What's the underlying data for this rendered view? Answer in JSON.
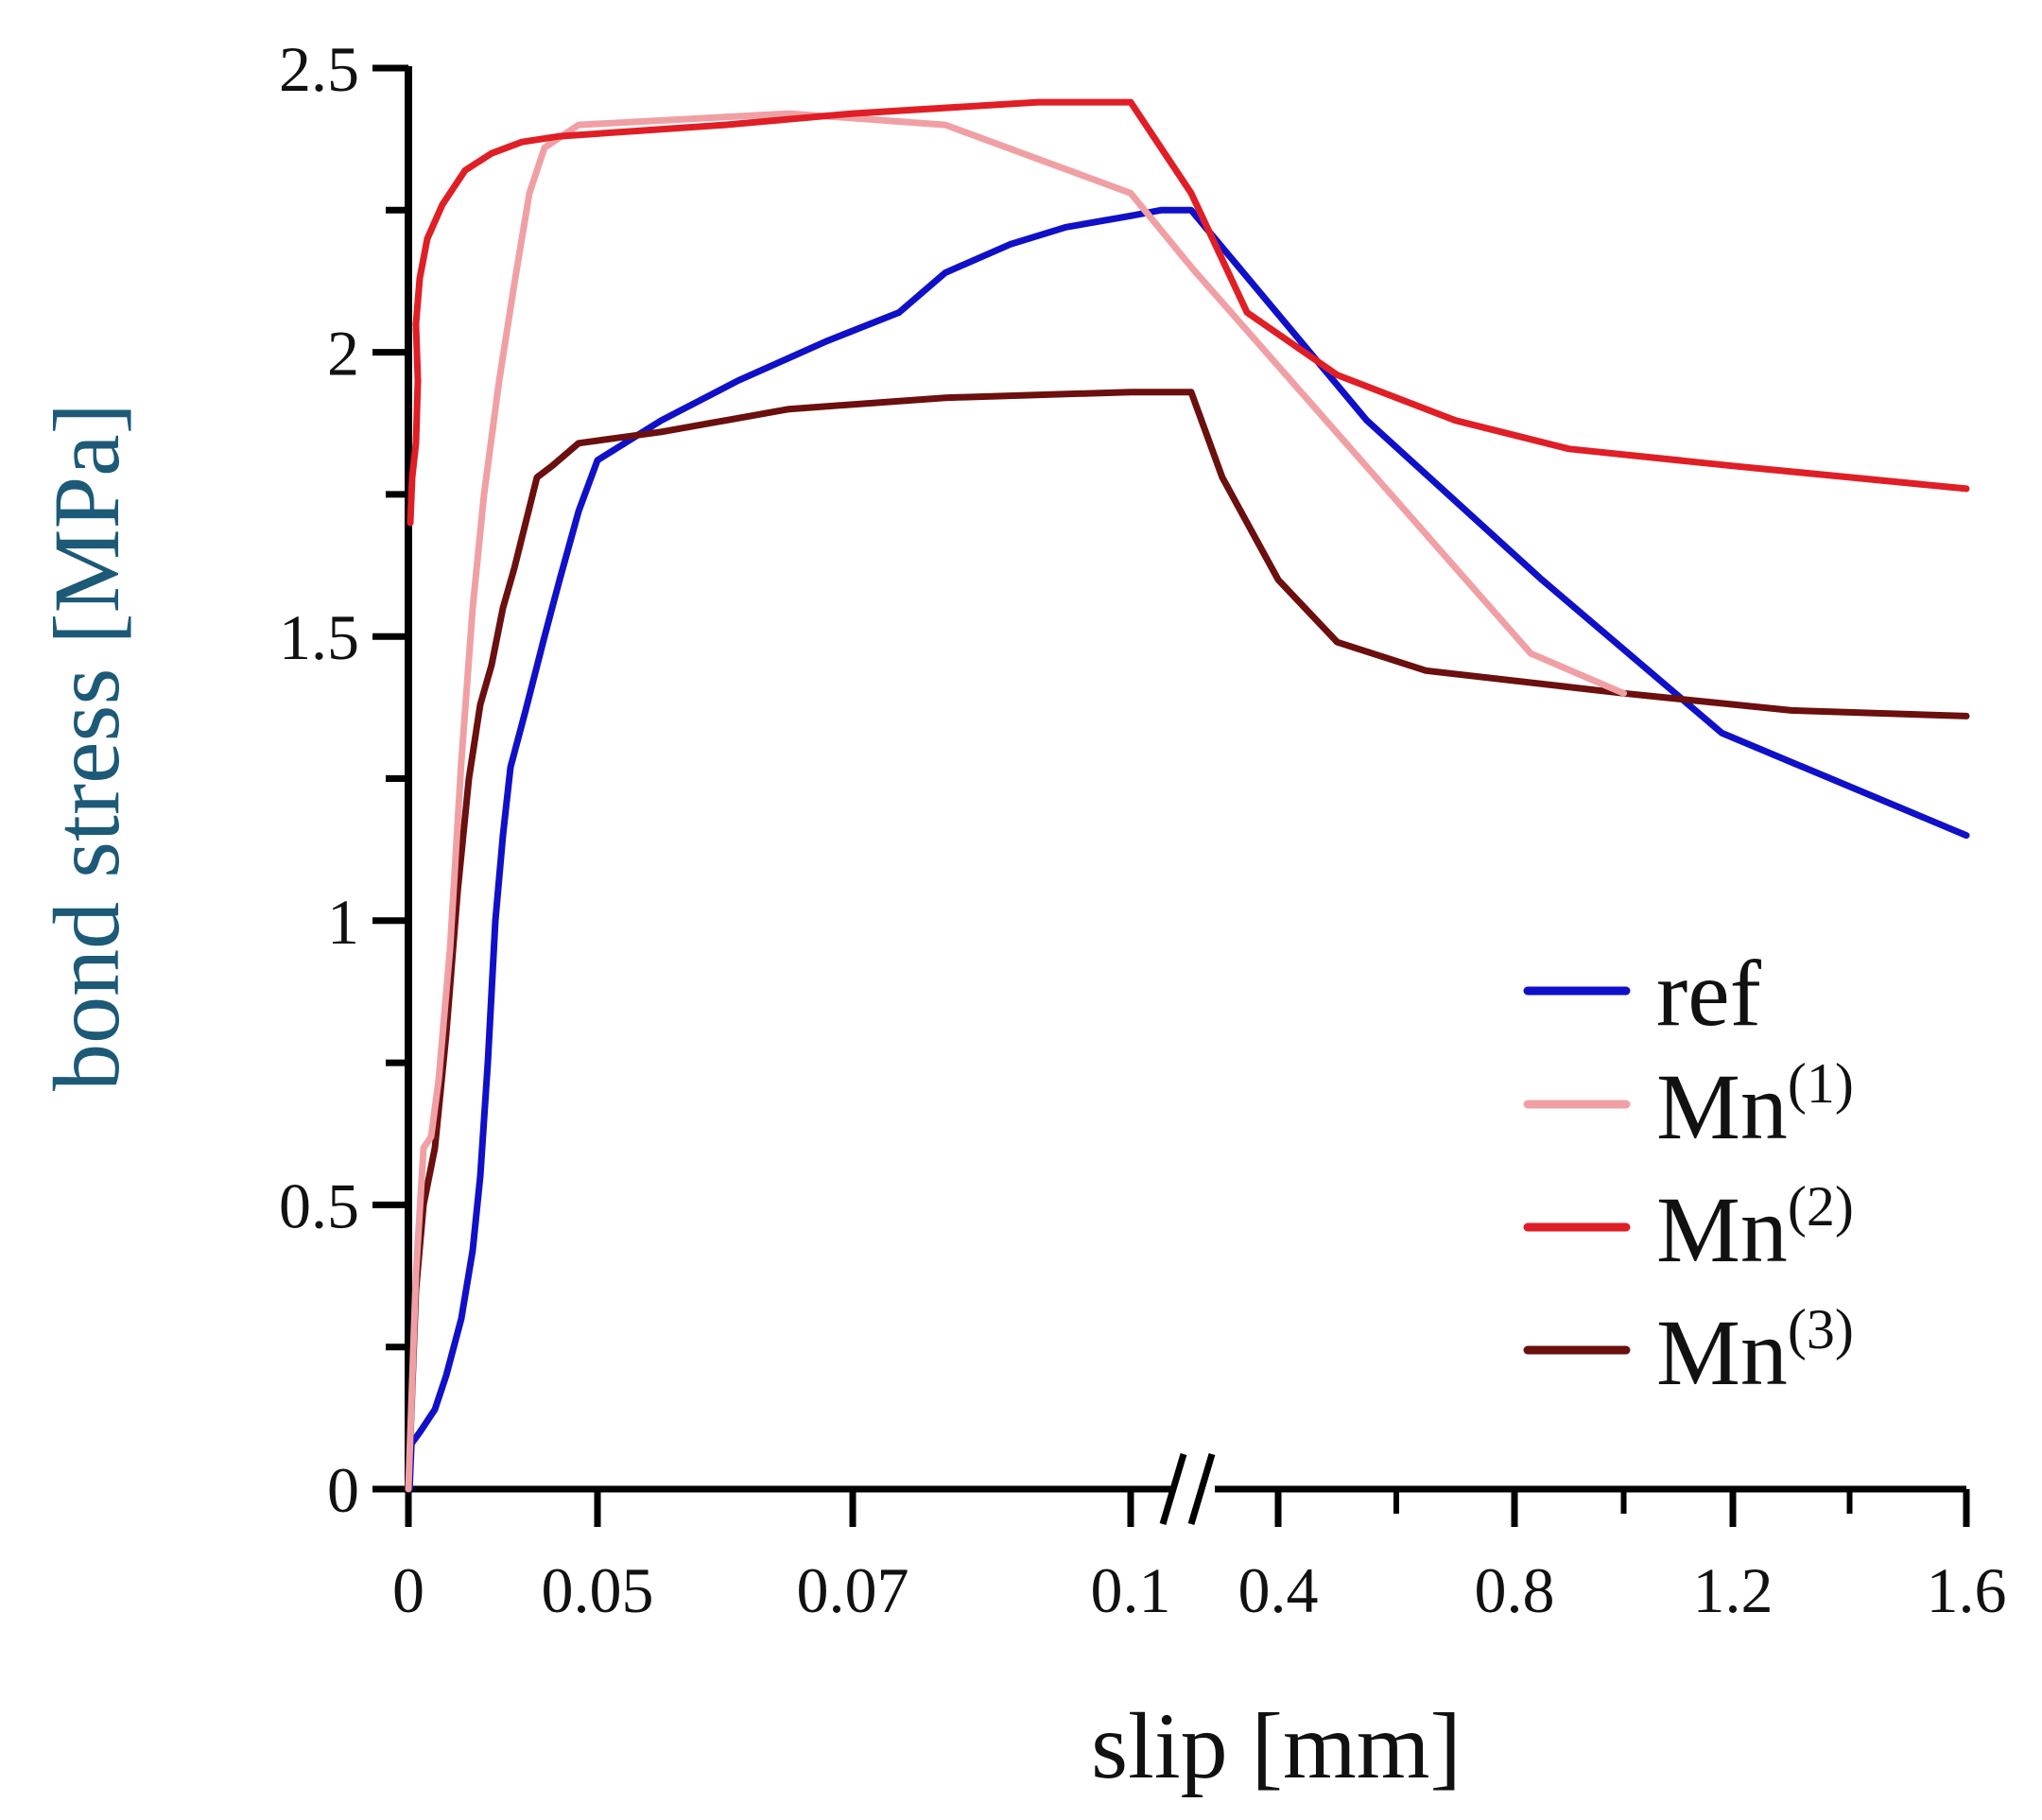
{
  "chart_data": {
    "type": "line",
    "xlabel": "slip [mm]",
    "ylabel": "bond stress [MPa]",
    "ylim": [
      0,
      2.5
    ],
    "y_ticks": [
      "0",
      "0.5",
      "1",
      "1.5",
      "2",
      "2.5"
    ],
    "x_ticks": [
      "0",
      "0.05",
      "0.07",
      "0.1",
      "0.4",
      "0.8",
      "1.2",
      "1.6"
    ],
    "x_axis_break": "between 0.1 and 0.4",
    "colors": {
      "ylabel": "#1d5a78",
      "xlabel": "#111111",
      "axis": "#000000"
    },
    "series": [
      {
        "name": "ref",
        "sup": "",
        "color": "#1010c8",
        "points": [
          [
            0.0003,
            0.0
          ],
          [
            0.0008,
            0.08
          ],
          [
            0.003,
            0.1
          ],
          [
            0.007,
            0.14
          ],
          [
            0.01,
            0.2
          ],
          [
            0.014,
            0.3
          ],
          [
            0.017,
            0.42
          ],
          [
            0.019,
            0.55
          ],
          [
            0.021,
            0.75
          ],
          [
            0.023,
            1.0
          ],
          [
            0.025,
            1.15
          ],
          [
            0.027,
            1.27
          ],
          [
            0.031,
            1.37
          ],
          [
            0.036,
            1.5
          ],
          [
            0.04,
            1.6
          ],
          [
            0.045,
            1.72
          ],
          [
            0.05,
            1.81
          ],
          [
            0.055,
            1.88
          ],
          [
            0.061,
            1.95
          ],
          [
            0.068,
            2.02
          ],
          [
            0.075,
            2.07
          ],
          [
            0.08,
            2.14
          ],
          [
            0.087,
            2.19
          ],
          [
            0.093,
            2.22
          ],
          [
            0.1,
            2.24
          ],
          [
            0.11,
            2.25
          ],
          [
            0.12,
            2.25
          ],
          [
            0.55,
            1.88
          ],
          [
            0.85,
            1.6
          ],
          [
            1.18,
            1.33
          ],
          [
            1.6,
            1.15
          ]
        ]
      },
      {
        "name": "Mn",
        "sup": "(1)",
        "color": "#f0a0a4",
        "points": [
          [
            0.0,
            0.0
          ],
          [
            0.002,
            0.38
          ],
          [
            0.004,
            0.6
          ],
          [
            0.006,
            0.62
          ],
          [
            0.008,
            0.72
          ],
          [
            0.011,
            0.95
          ],
          [
            0.014,
            1.28
          ],
          [
            0.017,
            1.55
          ],
          [
            0.02,
            1.75
          ],
          [
            0.024,
            1.95
          ],
          [
            0.028,
            2.12
          ],
          [
            0.032,
            2.28
          ],
          [
            0.036,
            2.36
          ],
          [
            0.045,
            2.4
          ],
          [
            0.065,
            2.42
          ],
          [
            0.08,
            2.4
          ],
          [
            0.1,
            2.28
          ],
          [
            0.12,
            2.15
          ],
          [
            0.83,
            1.47
          ],
          [
            1.0,
            1.4
          ]
        ]
      },
      {
        "name": "Mn",
        "sup": "(2)",
        "color": "#e01e25",
        "points": [
          [
            0.0005,
            1.7
          ],
          [
            0.001,
            1.78
          ],
          [
            0.002,
            1.84
          ],
          [
            0.0025,
            1.95
          ],
          [
            0.002,
            2.05
          ],
          [
            0.003,
            2.13
          ],
          [
            0.005,
            2.2
          ],
          [
            0.009,
            2.26
          ],
          [
            0.015,
            2.32
          ],
          [
            0.022,
            2.35
          ],
          [
            0.03,
            2.37
          ],
          [
            0.04,
            2.38
          ],
          [
            0.06,
            2.4
          ],
          [
            0.07,
            2.42
          ],
          [
            0.09,
            2.44
          ],
          [
            0.1,
            2.44
          ],
          [
            0.12,
            2.28
          ],
          [
            0.3,
            2.07
          ],
          [
            0.5,
            1.96
          ],
          [
            0.7,
            1.88
          ],
          [
            0.9,
            1.83
          ],
          [
            1.2,
            1.8
          ],
          [
            1.6,
            1.76
          ]
        ]
      },
      {
        "name": "Mn",
        "sup": "(3)",
        "color": "#6b0f0f",
        "points": [
          [
            0.0,
            0.0
          ],
          [
            0.002,
            0.35
          ],
          [
            0.004,
            0.5
          ],
          [
            0.007,
            0.6
          ],
          [
            0.01,
            0.8
          ],
          [
            0.013,
            1.05
          ],
          [
            0.016,
            1.25
          ],
          [
            0.019,
            1.38
          ],
          [
            0.022,
            1.45
          ],
          [
            0.025,
            1.55
          ],
          [
            0.028,
            1.62
          ],
          [
            0.031,
            1.7
          ],
          [
            0.034,
            1.78
          ],
          [
            0.038,
            1.8
          ],
          [
            0.045,
            1.84
          ],
          [
            0.055,
            1.86
          ],
          [
            0.065,
            1.9
          ],
          [
            0.08,
            1.92
          ],
          [
            0.1,
            1.93
          ],
          [
            0.12,
            1.93
          ],
          [
            0.22,
            1.78
          ],
          [
            0.4,
            1.6
          ],
          [
            0.5,
            1.49
          ],
          [
            0.65,
            1.44
          ],
          [
            1.0,
            1.4
          ],
          [
            1.3,
            1.37
          ],
          [
            1.6,
            1.36
          ]
        ]
      }
    ]
  }
}
